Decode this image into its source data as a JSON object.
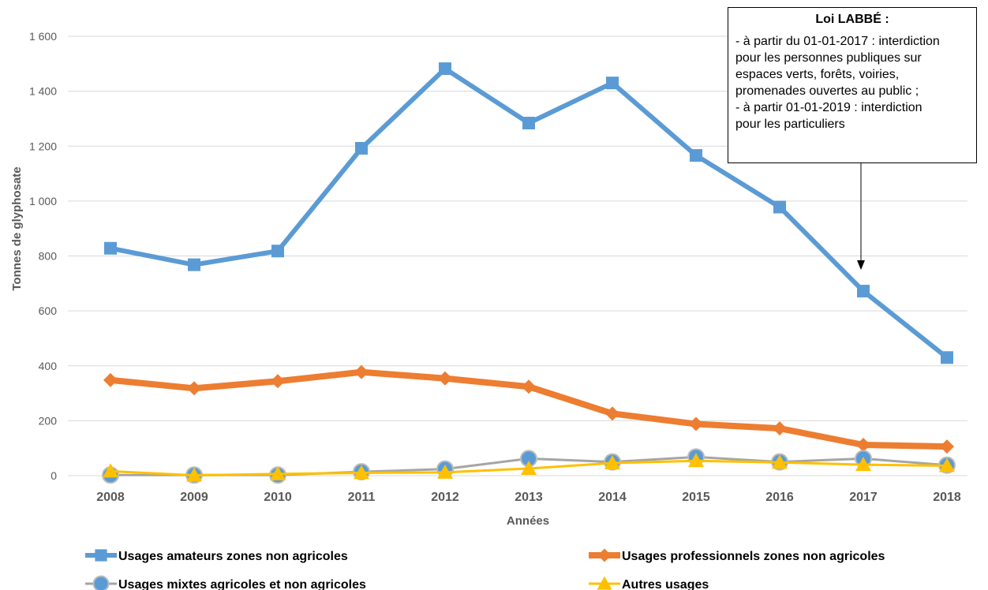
{
  "chart_data": {
    "type": "line",
    "xlabel": "Années",
    "ylabel": "Tonnes de glyphosate",
    "ylim": [
      0,
      1600
    ],
    "yticks": [
      "0",
      "200",
      "400",
      "600",
      "800",
      "1 000",
      "1 200",
      "1 400",
      "1 600"
    ],
    "grid": true,
    "legend_position": "bottom",
    "categories": [
      "2008",
      "2009",
      "2010",
      "2011",
      "2012",
      "2013",
      "2014",
      "2015",
      "2016",
      "2017",
      "2018"
    ],
    "series": [
      {
        "name": "Usages amateurs zones non agricoles",
        "color": "#5B9BD5",
        "marker": "square",
        "values": [
          828,
          768,
          818,
          1192,
          1482,
          1284,
          1430,
          1166,
          978,
          672,
          430
        ]
      },
      {
        "name": "Usages professionnels zones non agricoles",
        "color": "#ED7D31",
        "marker": "diamond",
        "values": [
          348,
          318,
          344,
          377,
          354,
          324,
          226,
          188,
          172,
          112,
          106
        ]
      },
      {
        "name": "Usages mixtes agricoles et non agricoles",
        "color": "#A5A5A5",
        "marker_color": "#5B9BD5",
        "marker": "circle",
        "values": [
          2,
          2,
          2,
          14,
          24,
          62,
          50,
          68,
          50,
          62,
          38
        ]
      },
      {
        "name": "Autres usages",
        "color": "#FFC000",
        "marker": "triangle",
        "values": [
          16,
          1,
          6,
          10,
          12,
          26,
          46,
          54,
          48,
          40,
          36
        ]
      }
    ],
    "annotation": {
      "title": "Loi LABBÉ :",
      "lines": [
        "- à partir du 01-01-2017 : interdiction",
        "pour les personnes publiques sur",
        "espaces verts, forêts, voiries,",
        "promenades ouvertes au public ;",
        "- à partir 01-01-2019 : interdiction",
        "pour les particuliers"
      ],
      "arrow_target": "2017"
    }
  }
}
